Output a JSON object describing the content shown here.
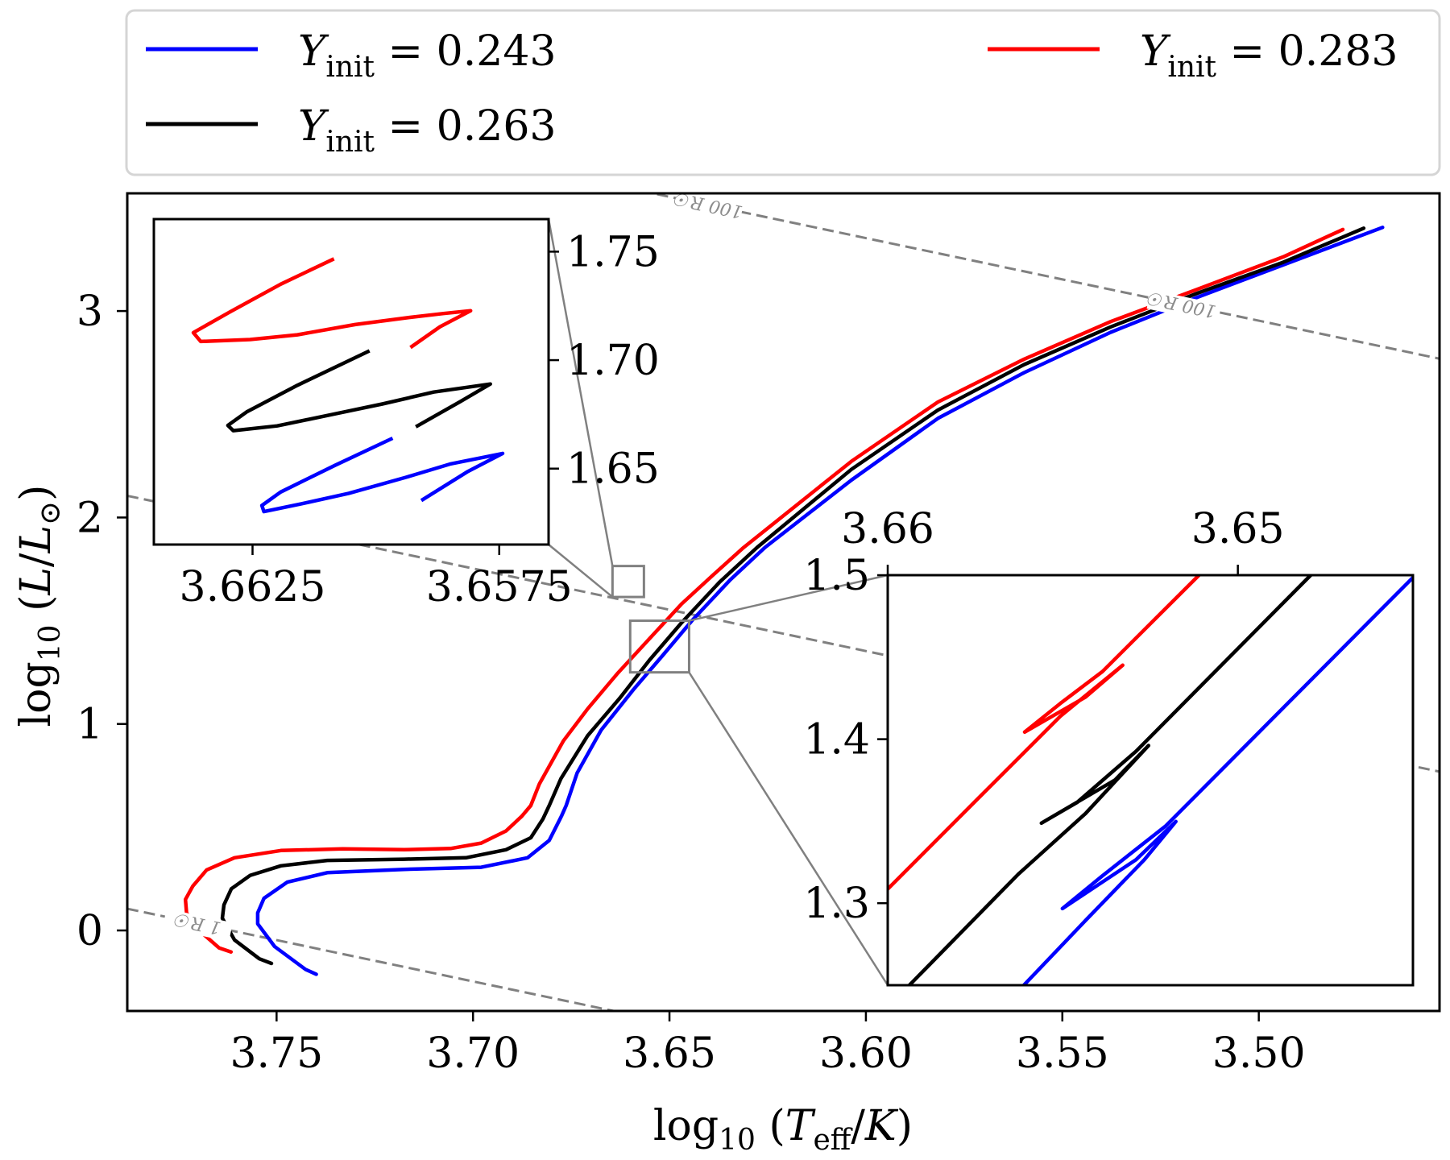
{
  "chart_data": {
    "type": "line",
    "title": "",
    "xlabel": "log10 (Teff/K)",
    "ylabel": "log10 (L/L☉)",
    "xlabel_parts": {
      "prefix": "log",
      "sub": "10",
      "open": " (",
      "var": "T",
      "var_sub": "eff",
      "slash": "/",
      "var2": "K",
      "close": ")"
    },
    "ylabel_parts": {
      "prefix": "log",
      "sub": "10",
      "open": " (",
      "var": "L",
      "slash": "/",
      "var2": "L",
      "var2_sub": "⊙",
      "close": ")"
    },
    "xlim": [
      3.788,
      3.454
    ],
    "ylim": [
      -0.39,
      3.57
    ],
    "x_inverted": true,
    "grid": false,
    "xticks": [
      3.75,
      3.7,
      3.65,
      3.6,
      3.55,
      3.5
    ],
    "xtick_labels": [
      "3.75",
      "3.70",
      "3.65",
      "3.60",
      "3.55",
      "3.50"
    ],
    "yticks": [
      0,
      1,
      2,
      3
    ],
    "ytick_labels": [
      "0",
      "1",
      "2",
      "3"
    ],
    "legend": {
      "placement": "top (outside, above axes), 2 columns",
      "entries": [
        {
          "var": "Y",
          "sub": "init",
          "eq": " = 0.243",
          "label": "Y_init = 0.243",
          "color": "#0000ff"
        },
        {
          "var": "Y",
          "sub": "init",
          "eq": " = 0.263",
          "label": "Y_init = 0.263",
          "color": "#000000"
        },
        {
          "var": "Y",
          "sub": "init",
          "eq": " = 0.283",
          "label": "Y_init = 0.283",
          "color": "#ff0000"
        }
      ]
    },
    "radius_lines": {
      "color": "#808080",
      "style": "dashed",
      "relation": "log L = 2 log(R/R☉) + 4 (log Teff − 3.7617)",
      "lines": [
        {
          "radius_rsun": 1,
          "labels": [
            "1 R☉"
          ]
        },
        {
          "radius_rsun": 10,
          "labels": []
        },
        {
          "radius_rsun": 100,
          "labels": [
            "100 R☉",
            "100 R☉"
          ]
        }
      ],
      "label_positions_logTeff": {
        "1": [
          3.77
        ],
        "100": [
          3.64,
          3.5195
        ]
      }
    },
    "series": [
      {
        "name": "Y_init = 0.243",
        "color": "#0000ff",
        "x": [
          3.7399,
          3.7426,
          3.7505,
          3.7548,
          3.7548,
          3.7532,
          3.7473,
          3.7371,
          3.7175,
          3.6979,
          3.6861,
          3.6806,
          3.6775,
          3.6763,
          3.6735,
          3.6674,
          3.6592,
          3.6516,
          3.6441,
          3.6345,
          3.6257,
          3.6037,
          3.5817,
          3.5597,
          3.5377,
          3.5157,
          3.4938,
          3.4685
        ],
        "y": [
          -0.212,
          -0.189,
          -0.078,
          0.032,
          0.085,
          0.156,
          0.234,
          0.28,
          0.296,
          0.306,
          0.352,
          0.436,
          0.553,
          0.605,
          0.762,
          0.97,
          1.166,
          1.335,
          1.504,
          1.699,
          1.855,
          2.181,
          2.48,
          2.702,
          2.897,
          3.066,
          3.223,
          3.405
        ]
      },
      {
        "name": "Y_init = 0.263",
        "color": "#000000",
        "x": [
          3.7513,
          3.7544,
          3.7607,
          3.7638,
          3.7634,
          3.7615,
          3.7567,
          3.7489,
          3.7371,
          3.7175,
          3.7018,
          3.6916,
          3.6853,
          3.6822,
          3.6806,
          3.6776,
          3.6708,
          3.6626,
          3.6551,
          3.6469,
          3.6373,
          3.6277,
          3.6037,
          3.5817,
          3.5597,
          3.5377,
          3.5157,
          3.4938,
          3.4733
        ],
        "y": [
          -0.16,
          -0.137,
          -0.046,
          0.059,
          0.124,
          0.202,
          0.267,
          0.313,
          0.339,
          0.345,
          0.352,
          0.391,
          0.449,
          0.54,
          0.605,
          0.736,
          0.944,
          1.126,
          1.309,
          1.491,
          1.686,
          1.855,
          2.233,
          2.52,
          2.741,
          2.923,
          3.086,
          3.236,
          3.401
        ]
      },
      {
        "name": "Y_init = 0.283",
        "color": "#ff0000",
        "x": [
          3.7616,
          3.7646,
          3.7693,
          3.7729,
          3.7732,
          3.7713,
          3.7678,
          3.7607,
          3.7489,
          3.7332,
          3.7175,
          3.7057,
          3.6979,
          3.6916,
          3.6876,
          3.6853,
          3.6831,
          3.677,
          3.6708,
          3.6633,
          3.6551,
          3.6469,
          3.6387,
          3.6311,
          3.6037,
          3.5817,
          3.5597,
          3.5377,
          3.5157,
          3.4938,
          3.4786
        ],
        "y": [
          -0.104,
          -0.085,
          -0.007,
          0.085,
          0.15,
          0.215,
          0.293,
          0.352,
          0.387,
          0.395,
          0.391,
          0.397,
          0.423,
          0.482,
          0.553,
          0.605,
          0.71,
          0.918,
          1.074,
          1.243,
          1.413,
          1.582,
          1.725,
          1.855,
          2.272,
          2.559,
          2.767,
          2.949,
          3.105,
          3.262,
          3.395
        ]
      }
    ],
    "insets": [
      {
        "name": "inset-top-left",
        "placement": "upper-left",
        "xlim": [
          3.6645,
          3.6565
        ],
        "ylim": [
          1.615,
          1.765
        ],
        "xticks": [
          3.6625,
          3.6575
        ],
        "xtick_labels": [
          "3.6625",
          "3.6575"
        ],
        "yticks": [
          1.65,
          1.7,
          1.75
        ],
        "ytick_labels": [
          "1.65",
          "1.70",
          "1.75"
        ],
        "ytick_side": "right",
        "series": [
          {
            "name": "Y_init = 0.243",
            "color": "#0000ff",
            "x": [
              3.65966,
              3.66083,
              3.66193,
              3.66231,
              3.66227,
              3.66152,
              3.66055,
              3.65939,
              3.6585,
              3.65743,
              3.65815,
              3.65908
            ],
            "y": [
              1.664,
              1.6515,
              1.6392,
              1.633,
              1.6302,
              1.6337,
              1.6386,
              1.646,
              1.6521,
              1.657,
              1.6485,
              1.6353
            ]
          },
          {
            "name": "Y_init = 0.263",
            "color": "#000000",
            "x": [
              3.66013,
              3.66159,
              3.66262,
              3.663,
              3.66289,
              3.662,
              3.6609,
              3.65987,
              3.65883,
              3.65768,
              3.65828,
              3.65919
            ],
            "y": [
              1.7043,
              1.6884,
              1.6761,
              1.6699,
              1.6675,
              1.6697,
              1.6749,
              1.6798,
              1.6853,
              1.689,
              1.681,
              1.6693
            ]
          },
          {
            "name": "Y_init = 0.283",
            "color": "#ff0000",
            "x": [
              3.66085,
              3.66193,
              3.66296,
              3.6637,
              3.66355,
              3.66255,
              3.66159,
              3.66042,
              3.65931,
              3.65863,
              3.65808,
              3.6587,
              3.6593
            ],
            "y": [
              1.7467,
              1.735,
              1.7222,
              1.7127,
              1.7086,
              1.7095,
              1.7117,
              1.7164,
              1.7197,
              1.7215,
              1.7228,
              1.7154,
              1.7058
            ]
          }
        ]
      },
      {
        "name": "inset-bottom-right",
        "placement": "lower-right",
        "xlim": [
          3.66,
          3.645
        ],
        "ylim": [
          1.25,
          1.5
        ],
        "xticks": [
          3.66,
          3.65
        ],
        "xtick_labels": [
          "3.66",
          "3.65"
        ],
        "xtick_side": "top",
        "yticks": [
          1.3,
          1.4,
          1.5
        ],
        "ytick_labels": [
          "1.3",
          "1.4",
          "1.5"
        ],
        "series": [
          {
            "name": "Y_init = 0.243",
            "color": "#0000ff",
            "x": [
              3.65613,
              3.65435,
              3.65267,
              3.65177,
              3.65291,
              3.65501,
              3.65387,
              3.65207,
              3.645
            ],
            "y": [
              1.2496,
              1.2895,
              1.3265,
              1.3498,
              1.3265,
              1.2967,
              1.3167,
              1.3469,
              1.4986
            ]
          },
          {
            "name": "Y_init = 0.263",
            "color": "#000000",
            "x": [
              3.6594,
              3.65627,
              3.65435,
              3.65255,
              3.65351,
              3.65561,
              3.65459,
              3.65291,
              3.64792
            ],
            "y": [
              1.2496,
              1.3177,
              1.3547,
              1.3961,
              1.3751,
              1.3488,
              1.3615,
              1.3926,
              1.5
            ]
          },
          {
            "name": "Y_init = 0.283",
            "color": "#ff0000",
            "x": [
              3.66,
              3.65748,
              3.65507,
              3.65329,
              3.65435,
              3.65609,
              3.65507,
              3.65387,
              3.65111
            ],
            "y": [
              1.3086,
              1.3625,
              1.414,
              1.4451,
              1.4257,
              1.4043,
              1.4218,
              1.4412,
              1.5
            ]
          }
        ]
      }
    ]
  }
}
